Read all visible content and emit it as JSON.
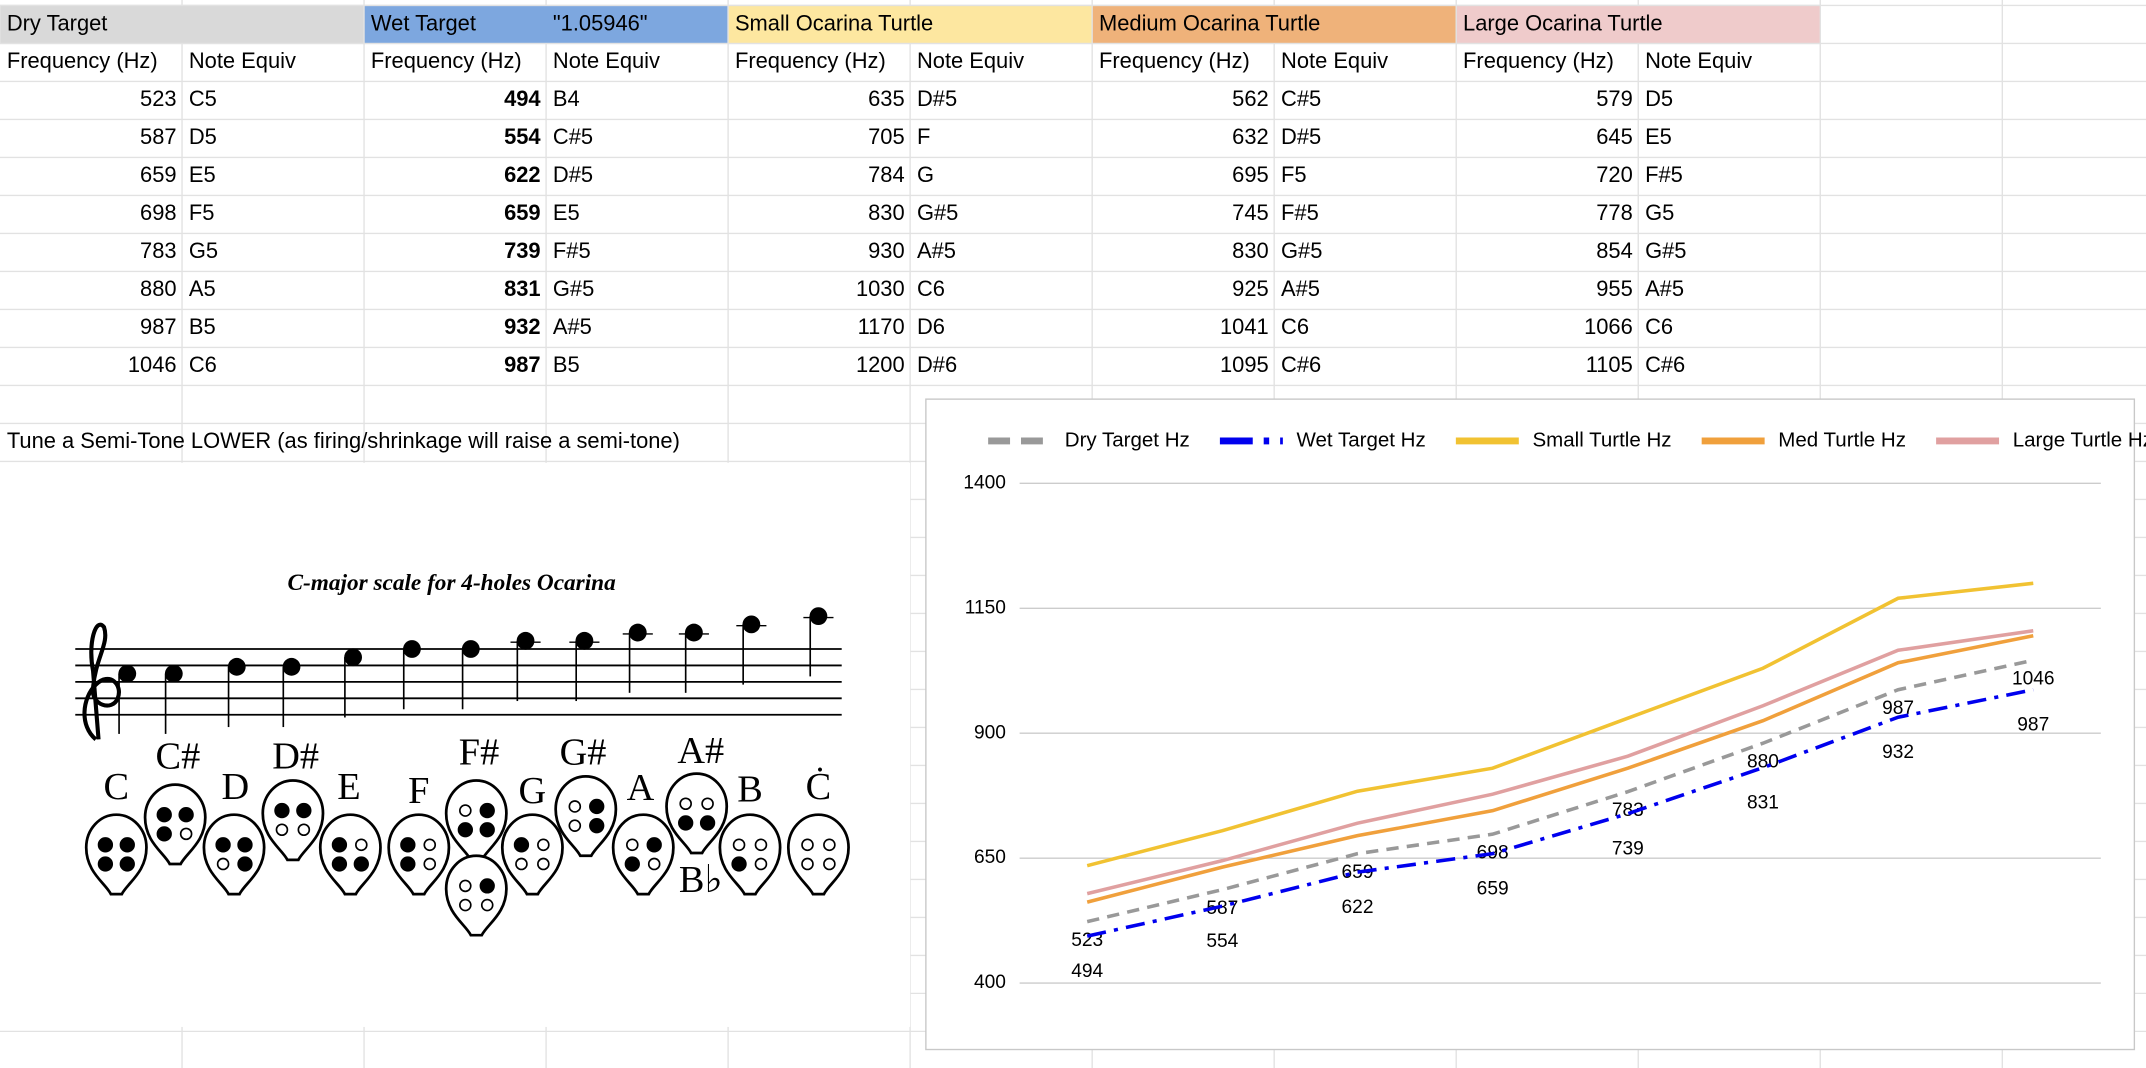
{
  "sheet": {
    "groups": [
      {
        "title": "Dry Target",
        "color": "#d9d9d9",
        "bold_frequency": false,
        "columns": [
          "Frequency (Hz)",
          "Note Equiv"
        ],
        "rows": [
          [
            523,
            "C5"
          ],
          [
            587,
            "D5"
          ],
          [
            659,
            "E5"
          ],
          [
            698,
            "F5"
          ],
          [
            783,
            "G5"
          ],
          [
            880,
            "A5"
          ],
          [
            987,
            "B5"
          ],
          [
            1046,
            "C6"
          ]
        ]
      },
      {
        "title": "Wet Target",
        "factor": "\"1.05946\"",
        "color": "#7da7df",
        "bold_frequency": true,
        "columns": [
          "Frequency (Hz)",
          "Note Equiv"
        ],
        "rows": [
          [
            494,
            "B4"
          ],
          [
            554,
            "C#5"
          ],
          [
            622,
            "D#5"
          ],
          [
            659,
            "E5"
          ],
          [
            739,
            "F#5"
          ],
          [
            831,
            "G#5"
          ],
          [
            932,
            "A#5"
          ],
          [
            987,
            "B5"
          ]
        ]
      },
      {
        "title": "Small Ocarina Turtle",
        "color": "#fde7a0",
        "bold_frequency": false,
        "columns": [
          "Frequency (Hz)",
          "Note Equiv"
        ],
        "rows": [
          [
            635,
            "D#5"
          ],
          [
            705,
            "F"
          ],
          [
            784,
            "G"
          ],
          [
            830,
            "G#5"
          ],
          [
            930,
            "A#5"
          ],
          [
            1030,
            "C6"
          ],
          [
            1170,
            "D6"
          ],
          [
            1200,
            "D#6"
          ]
        ]
      },
      {
        "title": "Medium Ocarina Turtle",
        "color": "#efb27a",
        "bold_frequency": false,
        "columns": [
          "Frequency (Hz)",
          "Note Equiv"
        ],
        "rows": [
          [
            562,
            "C#5"
          ],
          [
            632,
            "D#5"
          ],
          [
            695,
            "F5"
          ],
          [
            745,
            "F#5"
          ],
          [
            830,
            "G#5"
          ],
          [
            925,
            "A#5"
          ],
          [
            1041,
            "C6"
          ],
          [
            1095,
            "C#6"
          ]
        ]
      },
      {
        "title": "Large Ocarina Turtle",
        "color": "#efcbcb",
        "bold_frequency": false,
        "columns": [
          "Frequency (Hz)",
          "Note Equiv"
        ],
        "rows": [
          [
            579,
            "D5"
          ],
          [
            645,
            "E5"
          ],
          [
            720,
            "F#5"
          ],
          [
            778,
            "G5"
          ],
          [
            854,
            "G#5"
          ],
          [
            955,
            "A#5"
          ],
          [
            1066,
            "C6"
          ],
          [
            1105,
            "C#6"
          ]
        ]
      }
    ],
    "note": "Tune a Semi-Tone LOWER (as firing/shrinkage will raise a semi-tone)"
  },
  "scale_image": {
    "title": "C-major scale for 4-holes Ocarina",
    "staff_notes": [
      "C",
      "C#",
      "D",
      "D#",
      "E",
      "F",
      "F#",
      "G",
      "G#",
      "A",
      "A#",
      "B",
      "C"
    ],
    "ocarina_notes": [
      "C",
      "C#",
      "D",
      "D#",
      "E",
      "F",
      "F#",
      "G",
      "G#",
      "A",
      "A#",
      "B",
      "Ċ",
      "B♭"
    ]
  },
  "chart_data": {
    "type": "line",
    "categories": [
      null,
      null,
      null,
      null,
      null,
      null,
      null,
      null
    ],
    "ylim": [
      400,
      1400
    ],
    "yticks": [
      400,
      650,
      900,
      1150,
      1400
    ],
    "grid": true,
    "legend": "top",
    "series": [
      {
        "name": "Dry Target Hz",
        "color": "#999999",
        "dash": "dashed",
        "data_labels": true,
        "values": [
          523,
          587,
          659,
          698,
          783,
          880,
          987,
          1046
        ]
      },
      {
        "name": "Wet Target Hz",
        "color": "#0000ee",
        "dash": "dashdot",
        "data_labels": true,
        "values": [
          494,
          554,
          622,
          659,
          739,
          831,
          932,
          987
        ]
      },
      {
        "name": "Small Turtle Hz",
        "color": "#f1c232",
        "dash": "solid",
        "data_labels": false,
        "values": [
          635,
          705,
          784,
          830,
          930,
          1030,
          1170,
          1200
        ]
      },
      {
        "name": "Med Turtle Hz",
        "color": "#f0a03c",
        "dash": "solid",
        "data_labels": false,
        "values": [
          562,
          632,
          695,
          745,
          830,
          925,
          1041,
          1095
        ]
      },
      {
        "name": "Large Turtle Hz",
        "color": "#e0a0a0",
        "dash": "solid",
        "data_labels": false,
        "values": [
          579,
          645,
          720,
          778,
          854,
          955,
          1066,
          1105
        ]
      }
    ]
  }
}
